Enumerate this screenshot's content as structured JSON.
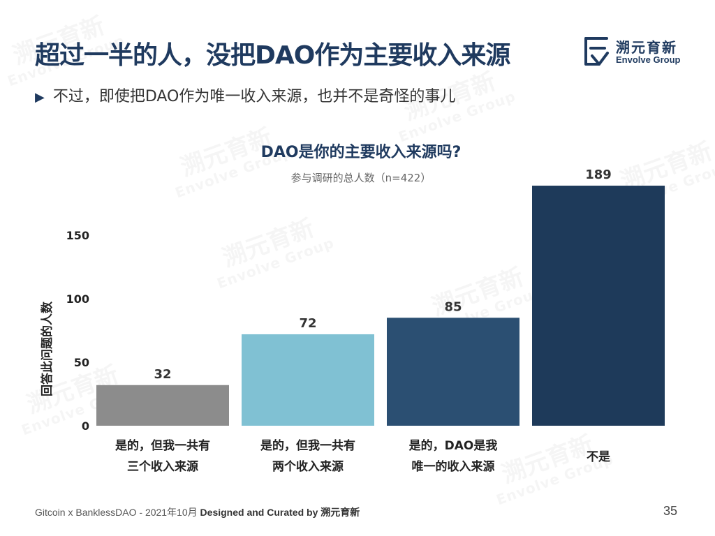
{
  "slide": {
    "title": "超过一半的人，没把DAO作为主要收入来源",
    "subtitle": "不过，即使把DAO作为唯一收入来源，也并不是奇怪的事儿",
    "page_number": "35"
  },
  "logo": {
    "cn": "溯元育新",
    "en": "Envolve Group",
    "color": "#1f3a5f"
  },
  "footer": {
    "prefix": "Gitcoin x BanklessDAO - 2021年10月",
    "credit": "Designed and Curated by 溯元育新"
  },
  "chart_data": {
    "type": "bar",
    "title": "DAO是你的主要收入来源吗?",
    "subtitle": "参与调研的总人数（n=422）",
    "ylabel": "回答此问题的人数",
    "xlabel": "",
    "ylim": [
      0,
      200
    ],
    "yticks": [
      "0",
      "50",
      "100",
      "150"
    ],
    "grid": false,
    "categories": [
      [
        "是的，但我一共有",
        "三个收入来源"
      ],
      [
        "是的，但我一共有",
        "两个收入来源"
      ],
      [
        "是的，DAO是我",
        "唯一的收入来源"
      ],
      [
        "不是"
      ]
    ],
    "values": [
      32,
      72,
      85,
      189
    ],
    "value_labels": [
      "32",
      "72",
      "85",
      "189"
    ],
    "colors": [
      "#8c8c8c",
      "#80c1d3",
      "#2b4f72",
      "#1e3a5a"
    ]
  }
}
